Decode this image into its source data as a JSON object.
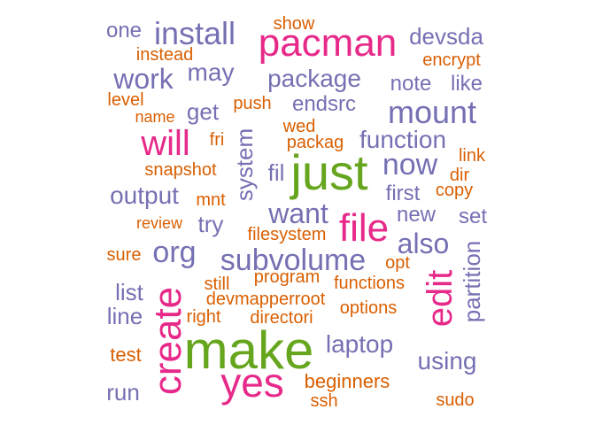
{
  "colors": {
    "green": "#66a61e",
    "magenta": "#e7298a",
    "purple": "#7570b3",
    "orange": "#d95f02"
  },
  "words": [
    {
      "text": "make",
      "weight": 5,
      "color": "green",
      "vertical": false
    },
    {
      "text": "just",
      "weight": 5,
      "color": "green",
      "vertical": false
    },
    {
      "text": "yes",
      "weight": 4,
      "color": "magenta",
      "vertical": false
    },
    {
      "text": "create",
      "weight": 4,
      "color": "magenta",
      "vertical": true
    },
    {
      "text": "pacman",
      "weight": 4,
      "color": "magenta",
      "vertical": false
    },
    {
      "text": "file",
      "weight": 4,
      "color": "magenta",
      "vertical": false
    },
    {
      "text": "will",
      "weight": 4,
      "color": "magenta",
      "vertical": false
    },
    {
      "text": "edit",
      "weight": 4,
      "color": "magenta",
      "vertical": true
    },
    {
      "text": "install",
      "weight": 3,
      "color": "purple",
      "vertical": false
    },
    {
      "text": "mount",
      "weight": 3,
      "color": "purple",
      "vertical": false
    },
    {
      "text": "subvolume",
      "weight": 3,
      "color": "purple",
      "vertical": false
    },
    {
      "text": "now",
      "weight": 3,
      "color": "purple",
      "vertical": false
    },
    {
      "text": "org",
      "weight": 3,
      "color": "purple",
      "vertical": false
    },
    {
      "text": "work",
      "weight": 3,
      "color": "purple",
      "vertical": false
    },
    {
      "text": "want",
      "weight": 3,
      "color": "purple",
      "vertical": false
    },
    {
      "text": "also",
      "weight": 3,
      "color": "purple",
      "vertical": false
    },
    {
      "text": "using",
      "weight": 2,
      "color": "purple",
      "vertical": false
    },
    {
      "text": "package",
      "weight": 2,
      "color": "purple",
      "vertical": false
    },
    {
      "text": "function",
      "weight": 2,
      "color": "purple",
      "vertical": false
    },
    {
      "text": "laptop",
      "weight": 2,
      "color": "purple",
      "vertical": false
    },
    {
      "text": "devsda",
      "weight": 2,
      "color": "purple",
      "vertical": false
    },
    {
      "text": "may",
      "weight": 2,
      "color": "purple",
      "vertical": false
    },
    {
      "text": "output",
      "weight": 2,
      "color": "purple",
      "vertical": false
    },
    {
      "text": "partition",
      "weight": 2,
      "color": "purple",
      "vertical": true
    },
    {
      "text": "system",
      "weight": 2,
      "color": "purple",
      "vertical": true
    },
    {
      "text": "endsrc",
      "weight": 2,
      "color": "purple",
      "vertical": false
    },
    {
      "text": "note",
      "weight": 2,
      "color": "purple",
      "vertical": false
    },
    {
      "text": "like",
      "weight": 2,
      "color": "purple",
      "vertical": false
    },
    {
      "text": "get",
      "weight": 2,
      "color": "purple",
      "vertical": false
    },
    {
      "text": "fil",
      "weight": 2,
      "color": "purple",
      "vertical": false
    },
    {
      "text": "first",
      "weight": 2,
      "color": "purple",
      "vertical": false
    },
    {
      "text": "new",
      "weight": 2,
      "color": "purple",
      "vertical": false
    },
    {
      "text": "set",
      "weight": 2,
      "color": "purple",
      "vertical": false
    },
    {
      "text": "try",
      "weight": 2,
      "color": "purple",
      "vertical": false
    },
    {
      "text": "list",
      "weight": 2,
      "color": "purple",
      "vertical": false
    },
    {
      "text": "line",
      "weight": 2,
      "color": "purple",
      "vertical": false
    },
    {
      "text": "run",
      "weight": 2,
      "color": "purple",
      "vertical": false
    },
    {
      "text": "one",
      "weight": 2,
      "color": "purple",
      "vertical": false
    },
    {
      "text": "show",
      "weight": 1,
      "color": "orange",
      "vertical": false
    },
    {
      "text": "instead",
      "weight": 1,
      "color": "orange",
      "vertical": false
    },
    {
      "text": "encrypt",
      "weight": 1,
      "color": "orange",
      "vertical": false
    },
    {
      "text": "level",
      "weight": 1,
      "color": "orange",
      "vertical": false
    },
    {
      "text": "name",
      "weight": 1,
      "color": "orange",
      "vertical": false
    },
    {
      "text": "push",
      "weight": 1,
      "color": "orange",
      "vertical": false
    },
    {
      "text": "wed",
      "weight": 1,
      "color": "orange",
      "vertical": false
    },
    {
      "text": "fri",
      "weight": 1,
      "color": "orange",
      "vertical": false
    },
    {
      "text": "packag",
      "weight": 1,
      "color": "orange",
      "vertical": false
    },
    {
      "text": "link",
      "weight": 1,
      "color": "orange",
      "vertical": false
    },
    {
      "text": "snapshot",
      "weight": 1,
      "color": "orange",
      "vertical": false
    },
    {
      "text": "dir",
      "weight": 1,
      "color": "orange",
      "vertical": false
    },
    {
      "text": "copy",
      "weight": 1,
      "color": "orange",
      "vertical": false
    },
    {
      "text": "mnt",
      "weight": 1,
      "color": "orange",
      "vertical": false
    },
    {
      "text": "review",
      "weight": 1,
      "color": "orange",
      "vertical": false
    },
    {
      "text": "filesystem",
      "weight": 1,
      "color": "orange",
      "vertical": false
    },
    {
      "text": "sure",
      "weight": 1,
      "color": "orange",
      "vertical": false
    },
    {
      "text": "opt",
      "weight": 1,
      "color": "orange",
      "vertical": false
    },
    {
      "text": "program",
      "weight": 1,
      "color": "orange",
      "vertical": false
    },
    {
      "text": "still",
      "weight": 1,
      "color": "orange",
      "vertical": false
    },
    {
      "text": "functions",
      "weight": 1,
      "color": "orange",
      "vertical": false
    },
    {
      "text": "devmapperroot",
      "weight": 1,
      "color": "orange",
      "vertical": false
    },
    {
      "text": "options",
      "weight": 1,
      "color": "orange",
      "vertical": false
    },
    {
      "text": "right",
      "weight": 1,
      "color": "orange",
      "vertical": false
    },
    {
      "text": "directori",
      "weight": 1,
      "color": "orange",
      "vertical": false
    },
    {
      "text": "test",
      "weight": 1,
      "color": "orange",
      "vertical": false
    },
    {
      "text": "beginners",
      "weight": 1,
      "color": "orange",
      "vertical": false
    },
    {
      "text": "ssh",
      "weight": 1,
      "color": "orange",
      "vertical": false
    },
    {
      "text": "sudo",
      "weight": 1,
      "color": "orange",
      "vertical": false
    }
  ]
}
